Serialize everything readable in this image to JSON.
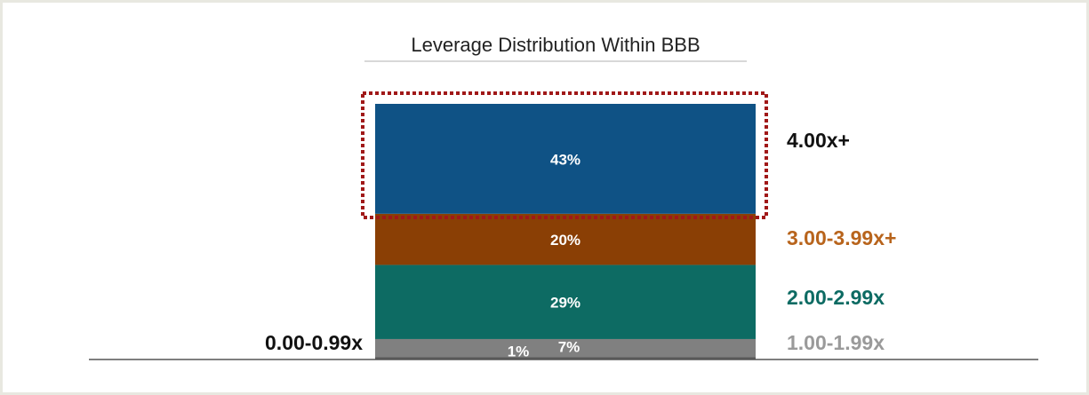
{
  "chart_data": {
    "type": "bar",
    "stacked": true,
    "title": "Leverage Distribution Within BBB",
    "ylim": [
      0,
      100
    ],
    "series": [
      {
        "name": "0.00-0.99x",
        "color": "#5a5a5a",
        "label_color": "#111111",
        "values": [
          1
        ],
        "value_labels": [
          "1%"
        ]
      },
      {
        "name": "1.00-1.99x",
        "color": "#808080",
        "label_color": "#9a9a9a",
        "values": [
          7
        ],
        "value_labels": [
          "7%"
        ]
      },
      {
        "name": "2.00-2.99x",
        "color": "#0d6b63",
        "label_color": "#0d6b63",
        "values": [
          29
        ],
        "value_labels": [
          "29%"
        ]
      },
      {
        "name": "3.00-3.99x+",
        "color": "#8a3f05",
        "label_color": "#b8641c",
        "values": [
          20
        ],
        "value_labels": [
          "20%"
        ]
      },
      {
        "name": "4.00x+",
        "color": "#0f5285",
        "label_color": "#111111",
        "values": [
          43
        ],
        "value_labels": [
          "43%"
        ]
      }
    ]
  }
}
